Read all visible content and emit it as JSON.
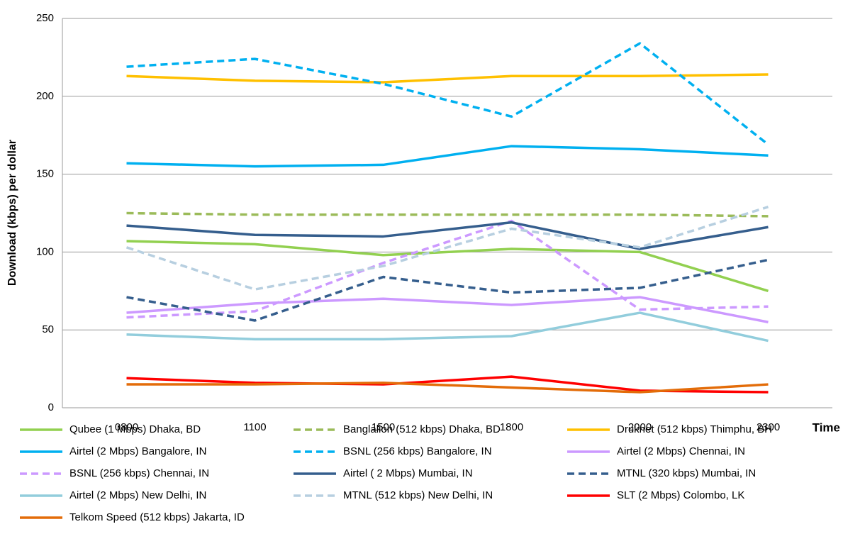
{
  "chart_data": {
    "type": "line",
    "y_label": "Download (kbps) per dollar",
    "x_label": "Time",
    "categories": [
      "0800",
      "1100",
      "1500",
      "1800",
      "2000",
      "2300"
    ],
    "ylim": [
      0,
      250
    ],
    "yticks": [
      0,
      50,
      100,
      150,
      200,
      250
    ],
    "grid": true,
    "series": [
      {
        "name": "Qubee (1 Mbps) Dhaka, BD",
        "color": "#92d050",
        "dashed": false,
        "values": [
          107,
          105,
          98,
          102,
          100,
          75
        ]
      },
      {
        "name": "Banglalion (512 kbps) Dhaka, BD",
        "color": "#9bbb59",
        "dashed": true,
        "values": [
          125,
          124,
          124,
          124,
          124,
          123
        ]
      },
      {
        "name": "Druknet (512 kbps) Thimphu, BH",
        "color": "#ffc000",
        "dashed": false,
        "values": [
          213,
          210,
          209,
          213,
          213,
          214
        ]
      },
      {
        "name": "Airtel (2 Mbps) Bangalore, IN",
        "color": "#00b0f0",
        "dashed": false,
        "values": [
          157,
          155,
          156,
          168,
          166,
          162
        ]
      },
      {
        "name": "BSNL (256 kbps) Bangalore, IN",
        "color": "#00b0f0",
        "dashed": true,
        "values": [
          219,
          224,
          208,
          187,
          234,
          169
        ]
      },
      {
        "name": "Airtel (2 Mbps) Chennai, IN",
        "color": "#cc99ff",
        "dashed": false,
        "values": [
          61,
          67,
          70,
          66,
          71,
          55
        ]
      },
      {
        "name": "BSNL (256 kbps) Chennai, IN",
        "color": "#cc99ff",
        "dashed": true,
        "values": [
          58,
          62,
          93,
          120,
          63,
          65
        ]
      },
      {
        "name": "Airtel ( 2 Mbps) Mumbai, IN",
        "color": "#355e8d",
        "dashed": false,
        "values": [
          117,
          111,
          110,
          119,
          102,
          116
        ]
      },
      {
        "name": "MTNL (320 kbps) Mumbai, IN",
        "color": "#355e8d",
        "dashed": true,
        "values": [
          71,
          56,
          84,
          74,
          77,
          95
        ]
      },
      {
        "name": "Airtel (2 Mbps) New Delhi, IN",
        "color": "#92cddc",
        "dashed": false,
        "values": [
          47,
          44,
          44,
          46,
          61,
          43
        ]
      },
      {
        "name": "MTNL (512 kbps) New Delhi, IN",
        "color": "#b7cfe0",
        "dashed": true,
        "values": [
          103,
          76,
          91,
          115,
          103,
          129
        ]
      },
      {
        "name": "SLT (2 Mbps) Colombo, LK",
        "color": "#ff0000",
        "dashed": false,
        "values": [
          19,
          16,
          15,
          20,
          11,
          10
        ]
      },
      {
        "name": "Telkom Speed (512 kbps) Jakarta, ID",
        "color": "#e36c09",
        "dashed": false,
        "values": [
          15,
          15,
          16,
          13,
          10,
          15
        ]
      }
    ]
  }
}
